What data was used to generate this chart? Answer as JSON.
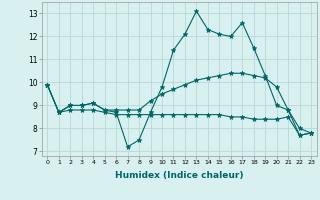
{
  "xlabel": "Humidex (Indice chaleur)",
  "background_color": "#d8f0f0",
  "grid_color": "#b8d8d8",
  "line_color": "#006666",
  "x": [
    0,
    1,
    2,
    3,
    4,
    5,
    6,
    7,
    8,
    9,
    10,
    11,
    12,
    13,
    14,
    15,
    16,
    17,
    18,
    19,
    20,
    21,
    22,
    23
  ],
  "line1": [
    9.9,
    8.7,
    9.0,
    9.0,
    9.1,
    8.8,
    8.7,
    7.2,
    7.5,
    8.7,
    9.8,
    11.4,
    12.1,
    13.1,
    12.3,
    12.1,
    12.0,
    12.6,
    11.5,
    10.3,
    9.0,
    8.8,
    7.7,
    7.8
  ],
  "line2": [
    9.9,
    8.7,
    9.0,
    9.0,
    9.1,
    8.8,
    8.8,
    8.8,
    8.8,
    9.2,
    9.5,
    9.7,
    9.9,
    10.1,
    10.2,
    10.3,
    10.4,
    10.4,
    10.3,
    10.2,
    9.8,
    8.8,
    8.0,
    7.8
  ],
  "line3": [
    9.9,
    8.7,
    8.8,
    8.8,
    8.8,
    8.7,
    8.6,
    8.6,
    8.6,
    8.6,
    8.6,
    8.6,
    8.6,
    8.6,
    8.6,
    8.6,
    8.5,
    8.5,
    8.4,
    8.4,
    8.4,
    8.5,
    7.7,
    7.8
  ],
  "ylim": [
    6.8,
    13.5
  ],
  "yticks": [
    7,
    8,
    9,
    10,
    11,
    12,
    13
  ],
  "xlim": [
    -0.5,
    23.5
  ]
}
